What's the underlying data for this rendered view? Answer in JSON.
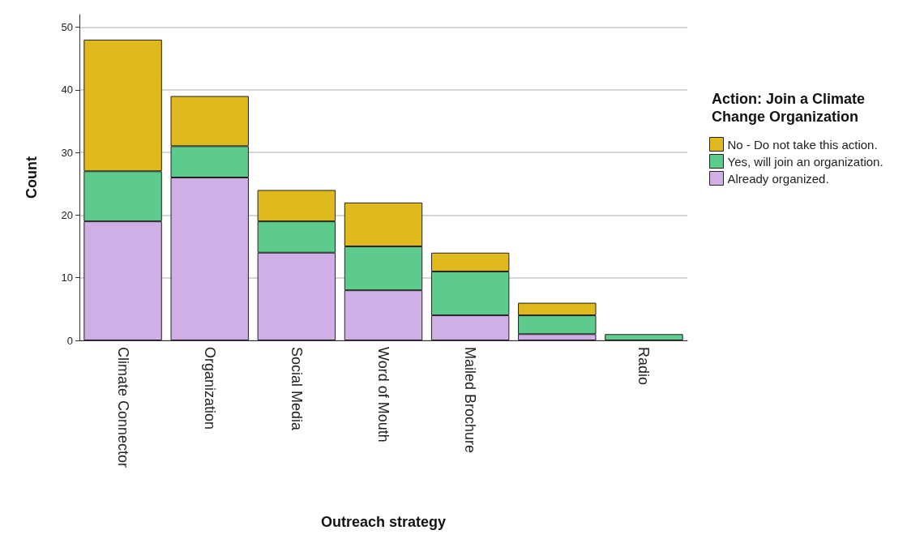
{
  "chart_data": {
    "type": "bar",
    "stacked": true,
    "xlabel": "Outreach strategy",
    "ylabel": "Count",
    "legend_title": "Action: Join a Climate Change Organization",
    "categories": [
      "Climate Connector",
      "Organization",
      "Social Media",
      "Word of Mouth",
      "Mailed Brochure",
      null,
      "Radio"
    ],
    "series": [
      {
        "name": "Already organized.",
        "color": "#d0aee6",
        "values": [
          19,
          26,
          14,
          8,
          4,
          1,
          null
        ]
      },
      {
        "name": "Yes, will join an organization.",
        "color": "#5ccb8b",
        "values": [
          8,
          5,
          5,
          7,
          7,
          3,
          1
        ]
      },
      {
        "name": "No - Do not take this action.",
        "color": "#e0b91c",
        "values": [
          21,
          8,
          5,
          7,
          3,
          2,
          null
        ]
      }
    ],
    "ylim": [
      0,
      52
    ],
    "yticks": [
      0,
      10,
      20,
      30,
      40,
      50
    ],
    "grid": "y",
    "legend": "right"
  }
}
